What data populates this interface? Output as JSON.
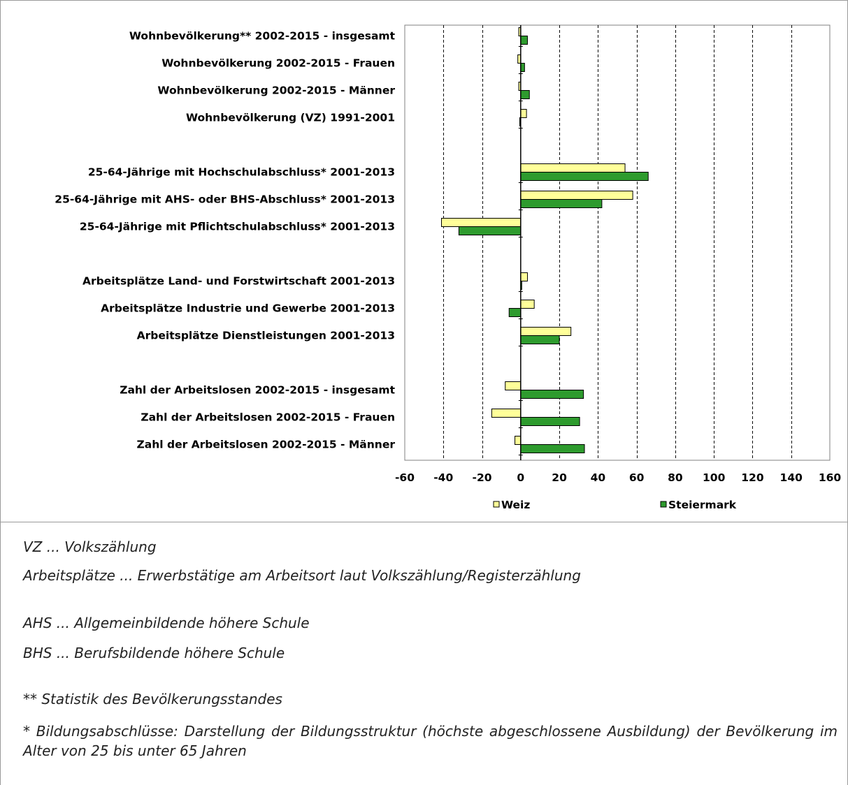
{
  "chart_data": {
    "type": "bar",
    "orientation": "horizontal",
    "categories": [
      "Wohnbevölkerung** 2002-2015 - insgesamt",
      "Wohnbevölkerung 2002-2015 - Frauen",
      "Wohnbevölkerung 2002-2015 - Männer",
      "Wohnbevölkerung (VZ) 1991-2001",
      "25-64-Jährige mit Hochschulabschluss* 2001-2013",
      "25-64-Jährige mit AHS- oder BHS-Abschluss* 2001-2013",
      "25-64-Jährige mit Pflichtschulabschluss* 2001-2013",
      "Arbeitsplätze Land- und Forstwirtschaft 2001-2013",
      "Arbeitsplätze Industrie und Gewerbe 2001-2013",
      "Arbeitsplätze Dienstleistungen 2001-2013",
      "Zahl der Arbeitslosen 2002-2015 - insgesamt",
      "Zahl der Arbeitslosen 2002-2015 - Frauen",
      "Zahl der Arbeitslosen 2002-2015 - Männer"
    ],
    "groups": [
      0,
      0,
      0,
      0,
      1,
      1,
      1,
      2,
      2,
      2,
      3,
      3,
      3
    ],
    "series": [
      {
        "name": "Weiz",
        "color": "#ffff99",
        "values": [
          -1,
          -1.5,
          -1,
          3,
          54,
          58,
          -41,
          3.5,
          7,
          26,
          -8,
          -15,
          -3
        ]
      },
      {
        "name": "Steiermark",
        "color": "#2e9b2e",
        "values": [
          3.5,
          2,
          4.5,
          -0.5,
          66,
          42,
          -32,
          0.5,
          -6,
          20,
          32.5,
          30.5,
          33
        ]
      }
    ],
    "xticks": [
      "-60",
      "-40",
      "-20",
      "0",
      "20",
      "40",
      "60",
      "80",
      "100",
      "120",
      "140",
      "160"
    ],
    "xlim": [
      -60,
      160
    ],
    "xlabel": "",
    "ylabel": "",
    "title": "",
    "grid": "vertical dashed",
    "legend": "bottom"
  },
  "notes": [
    "VZ ... Volkszählung",
    "Arbeitsplätze ... Erwerbstätige am Arbeitsort laut Volkszählung/Registerzählung",
    "AHS ... Allgemeinbildende höhere Schule",
    "BHS ... Berufsbildende höhere Schule",
    "** Statistik des Bevölkerungsstandes",
    "* Bildungsabschlüsse: Darstellung der Bildungsstruktur (höchste abgeschlossene Ausbildung) der Bevölkerung im Alter von 25 bis unter 65 Jahren"
  ]
}
